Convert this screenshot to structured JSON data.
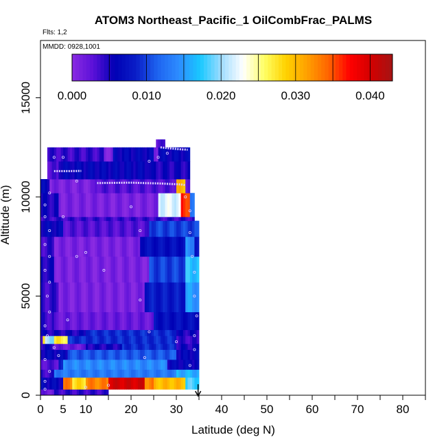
{
  "colors": {
    "scale": [
      "#8a2be2",
      "#5a10d8",
      "#0000b4",
      "#0a1ec8",
      "#1e64f0",
      "#2d8cff",
      "#19c8ff",
      "#a0dcff",
      "#ffffff",
      "#ffff64",
      "#ffd200",
      "#ffa000",
      "#ff6400",
      "#ff0000",
      "#d20000",
      "#a51414"
    ],
    "marker": "#e0d0ff",
    "arrow": "#000000"
  },
  "chart_data": {
    "type": "heatmap",
    "title": "ATOM3 Northeast_Pacific_1 OilCombFrac_PALMS",
    "note_flights": "Flts: 1,2",
    "note_dates": "MMDD: 0928,1001",
    "xlabel": "Latitude (deg N)",
    "ylabel": "Altitude (m)",
    "xlim": [
      0,
      85
    ],
    "ylim": [
      0,
      17500
    ],
    "x_tick_values": [
      0,
      5,
      10,
      20,
      30,
      40,
      50,
      60,
      70,
      80
    ],
    "x_tick_labels": [
      "0",
      "5",
      "10",
      "20",
      "30",
      "40",
      "50",
      "60",
      "70",
      "80"
    ],
    "x_minor_ticks": [
      15,
      25,
      35,
      45,
      55,
      65,
      75,
      85
    ],
    "y_tick_values": [
      0,
      5000,
      10000,
      15000
    ],
    "y_tick_labels": [
      "0",
      "5000",
      "10000",
      "15000"
    ],
    "colorbar": {
      "range": [
        0,
        0.043
      ],
      "tick_values": [
        0,
        0.01,
        0.02,
        0.03,
        0.04
      ],
      "tick_labels": [
        "0.000",
        "0.010",
        "0.020",
        "0.030",
        "0.040"
      ],
      "divisions": [
        0.005,
        0.01,
        0.015,
        0.02,
        0.025,
        0.03,
        0.035,
        0.04
      ]
    },
    "end_marker_latitude": 34.8,
    "rows": [
      {
        "y0": 0,
        "y1": 300,
        "x0": 0,
        "x1": 15,
        "base": 0.004,
        "mod": [
          [
            0,
            3,
            0.002
          ]
        ]
      },
      {
        "y0": 300,
        "y1": 900,
        "x0": 0,
        "x1": 35,
        "base": 0.006,
        "mod": [
          [
            5,
            25,
            0.033
          ],
          [
            7,
            10,
            0.028
          ],
          [
            15,
            23,
            0.04
          ],
          [
            25,
            32,
            0.03
          ],
          [
            32,
            35,
            0.018
          ]
        ]
      },
      {
        "y0": 900,
        "y1": 1300,
        "x0": 0,
        "x1": 35,
        "base": 0.013,
        "mod": [
          [
            0,
            3,
            0.004
          ],
          [
            30,
            35,
            0.016
          ]
        ]
      },
      {
        "y0": 1300,
        "y1": 1800,
        "x0": 0,
        "x1": 35,
        "base": 0.008,
        "mod": [
          [
            0,
            4,
            0.003
          ],
          [
            5,
            28,
            0.014
          ],
          [
            28,
            35,
            0.006
          ]
        ]
      },
      {
        "y0": 1800,
        "y1": 2300,
        "x0": 0,
        "x1": 35,
        "base": 0.006,
        "mod": [
          [
            6,
            30,
            0.011
          ]
        ]
      },
      {
        "y0": 2300,
        "y1": 2600,
        "x0": 0,
        "x1": 35,
        "base": 0.005,
        "mod": [
          [
            3,
            10,
            0.002
          ],
          [
            18,
            30,
            0.009
          ]
        ]
      },
      {
        "y0": 2600,
        "y1": 3000,
        "x0": 0,
        "x1": 35,
        "base": 0.004,
        "mod": [
          [
            0.5,
            6,
            0.027
          ],
          [
            1,
            3,
            0.02
          ],
          [
            6,
            30,
            0.009
          ]
        ]
      },
      {
        "y0": 3000,
        "y1": 3300,
        "x0": 0,
        "x1": 35,
        "base": 0.005,
        "mod": [
          [
            10,
            30,
            0.009
          ]
        ]
      },
      {
        "y0": 3300,
        "y1": 4200,
        "x0": 0,
        "x1": 35,
        "base": 0.002,
        "mod": [
          [
            0,
            3,
            0.004
          ],
          [
            25,
            35,
            0.007
          ]
        ]
      },
      {
        "y0": 4200,
        "y1": 5700,
        "x0": 0,
        "x1": 35,
        "base": 0.001,
        "mod": [
          [
            0,
            4,
            0.004
          ],
          [
            23,
            34,
            0.008
          ],
          [
            32,
            35,
            0.015
          ]
        ]
      },
      {
        "y0": 5700,
        "y1": 7000,
        "x0": 0,
        "x1": 35,
        "base": 0.001,
        "mod": [
          [
            0,
            3,
            0.005
          ],
          [
            24,
            35,
            0.01
          ],
          [
            32,
            35,
            0.017
          ]
        ]
      },
      {
        "y0": 7000,
        "y1": 8000,
        "x0": 0,
        "x1": 35,
        "base": 0.001,
        "mod": [
          [
            0,
            3,
            0.004
          ],
          [
            22,
            35,
            0.007
          ],
          [
            32,
            34,
            0.014
          ]
        ]
      },
      {
        "y0": 8000,
        "y1": 8800,
        "x0": 0,
        "x1": 35,
        "base": 0.003,
        "mod": [
          [
            0,
            5,
            0.006
          ],
          [
            24,
            35,
            0.01
          ]
        ]
      },
      {
        "y0": 8800,
        "y1": 9000,
        "x0": 0,
        "x1": 34,
        "base": 0.004,
        "mod": []
      },
      {
        "y0": 9000,
        "y1": 10200,
        "x0": 0,
        "x1": 34,
        "base": 0.001,
        "mod": [
          [
            0,
            4,
            0.005
          ],
          [
            26,
            34,
            0.022
          ],
          [
            31,
            33,
            0.036
          ],
          [
            33,
            34,
            0.012
          ]
        ]
      },
      {
        "y0": 10200,
        "y1": 10900,
        "x0": 0,
        "x1": 33,
        "base": 0.001,
        "mod": [
          [
            0,
            2,
            0.006
          ],
          [
            12,
            33,
            0.003
          ],
          [
            30,
            32,
            0.03
          ]
        ]
      },
      {
        "y0": 10900,
        "y1": 11800,
        "x0": 1.5,
        "x1": 33,
        "base": 0.006,
        "mod": [
          [
            1.5,
            4,
            0.003
          ],
          [
            4,
            12,
            0.006
          ],
          [
            24,
            33,
            0.005
          ]
        ]
      },
      {
        "y0": 11800,
        "y1": 12500,
        "x0": 1.5,
        "x1": 33,
        "base": 0.006,
        "mod": [
          [
            1.5,
            14,
            0.004
          ],
          [
            14,
            16,
            0.001
          ],
          [
            25,
            26,
            0.002
          ]
        ]
      },
      {
        "y0": 12500,
        "y1": 12900,
        "x0": 25.5,
        "x1": 27.5,
        "base": 0.003,
        "mod": []
      }
    ],
    "flight_tracks": [
      {
        "name": "",
        "points": [
          [
            12.5,
            10700
          ],
          [
            16,
            10710
          ],
          [
            20,
            10720
          ],
          [
            23,
            10700
          ],
          [
            26,
            10680
          ],
          [
            29,
            10650
          ],
          [
            31,
            10630
          ],
          [
            32,
            10600
          ]
        ]
      },
      {
        "name": "",
        "points": [
          [
            26.5,
            12500
          ],
          [
            28.5,
            12450
          ],
          [
            31,
            12400
          ],
          [
            32.5,
            12380
          ]
        ]
      },
      {
        "name": "",
        "points": [
          [
            3,
            11300
          ],
          [
            6,
            11300
          ],
          [
            9,
            11310
          ]
        ]
      }
    ],
    "scatter_points": [
      [
        1,
        300
      ],
      [
        1,
        700
      ],
      [
        2,
        1200
      ],
      [
        1,
        1800
      ],
      [
        3,
        2400
      ],
      [
        1.5,
        3000
      ],
      [
        1,
        3500
      ],
      [
        2,
        4200
      ],
      [
        1.5,
        5000
      ],
      [
        2,
        5700
      ],
      [
        1,
        6300
      ],
      [
        2,
        7000
      ],
      [
        1,
        7600
      ],
      [
        2,
        8300
      ],
      [
        1,
        9000
      ],
      [
        1,
        9600
      ],
      [
        2,
        10200
      ],
      [
        4,
        2000
      ],
      [
        6,
        3800
      ],
      [
        8,
        7000
      ],
      [
        10,
        7200
      ],
      [
        14,
        6300
      ],
      [
        22,
        8300
      ],
      [
        22,
        4800
      ],
      [
        24,
        3200
      ],
      [
        23,
        1900
      ],
      [
        30,
        2700
      ],
      [
        33,
        1500
      ],
      [
        34,
        2300
      ],
      [
        34,
        3000
      ],
      [
        34.5,
        4000
      ],
      [
        34,
        5000
      ],
      [
        34,
        6200
      ],
      [
        33.5,
        7000
      ],
      [
        33,
        8200
      ],
      [
        33,
        9300
      ],
      [
        32,
        10000
      ],
      [
        20,
        9500
      ],
      [
        5,
        9000
      ],
      [
        8,
        10800
      ],
      [
        3,
        12000
      ],
      [
        5,
        12000
      ],
      [
        26,
        12000
      ],
      [
        28,
        12200
      ],
      [
        24,
        11800
      ],
      [
        15,
        500
      ],
      [
        10,
        400
      ]
    ]
  }
}
